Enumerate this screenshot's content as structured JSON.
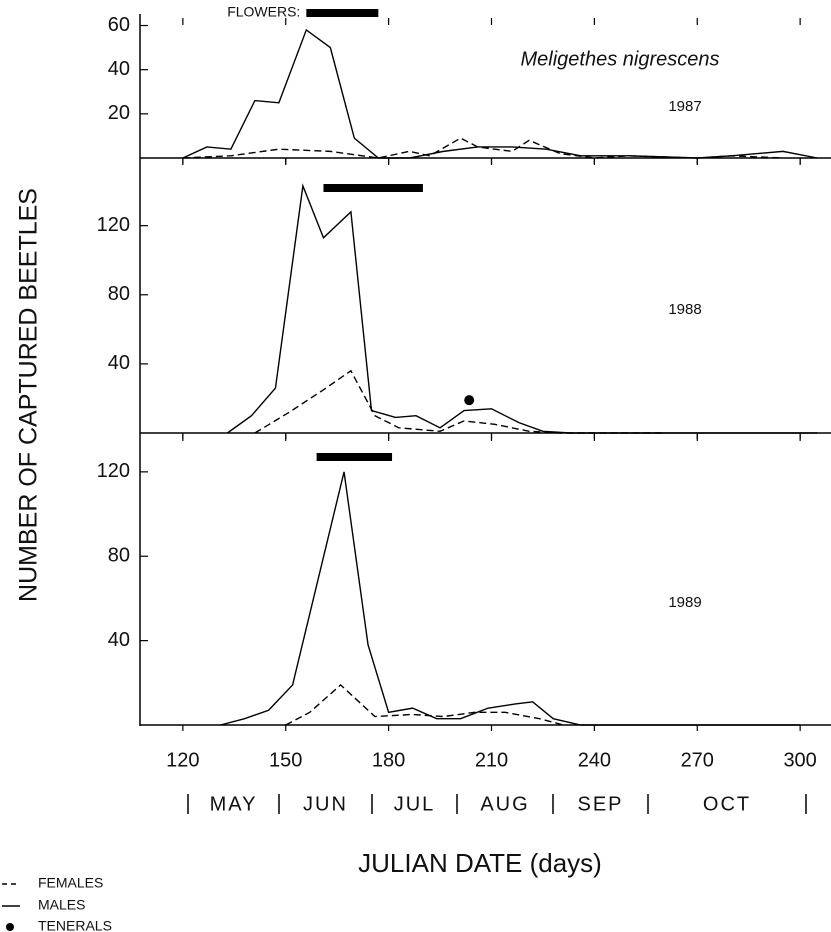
{
  "figure": {
    "ylabel": "NUMBER OF CAPTURED BEETLES",
    "xlabel": "JULIAN DATE (days)"
  },
  "chart_data": [
    {
      "type": "line",
      "label": "1987",
      "species": "Meligethes nigrescens",
      "flowers_label": "FLOWERS:",
      "flowers": [
        156,
        177
      ],
      "xlim": [
        107.5,
        309
      ],
      "ylim": [
        0,
        62.5
      ],
      "yticks": [
        20,
        40,
        60
      ],
      "series": [
        {
          "dash": true,
          "color": "#000000",
          "x": [
            120,
            134,
            148,
            163,
            177,
            186,
            192,
            201,
            206,
            216,
            221,
            230,
            240,
            250,
            270,
            280,
            295
          ],
          "values": [
            0,
            1,
            4,
            3,
            0,
            3,
            1,
            9,
            5,
            3,
            8,
            2,
            0,
            1,
            0,
            1,
            0
          ]
        },
        {
          "dash": false,
          "color": "#000000",
          "x": [
            120,
            127,
            134,
            141,
            148,
            156,
            163,
            170,
            177,
            186,
            196,
            206,
            216,
            226,
            236,
            250,
            270,
            280,
            295,
            305
          ],
          "values": [
            0,
            5,
            4,
            26,
            25,
            58,
            50,
            9,
            0,
            0,
            3,
            5,
            5,
            4,
            1,
            1,
            0,
            1,
            3,
            0
          ]
        }
      ]
    },
    {
      "type": "line",
      "label": "1988",
      "flowers": [
        161,
        190
      ],
      "xlim": [
        107.5,
        309
      ],
      "ylim": [
        0,
        158
      ],
      "yticks": [
        40,
        80,
        120
      ],
      "series": [
        {
          "name": "FEMALES",
          "dash": true,
          "color": "#000000",
          "x": [
            141,
            151,
            161,
            169,
            176,
            183,
            195,
            202,
            211,
            221,
            230,
            260
          ],
          "values": [
            0,
            12,
            25,
            36,
            10,
            3,
            1,
            7,
            5,
            1,
            0,
            0
          ]
        },
        {
          "name": "MALES",
          "dash": false,
          "color": "#000000",
          "x": [
            133,
            140,
            147,
            155,
            161,
            169,
            175,
            182,
            188,
            195,
            202,
            210,
            218,
            225,
            233,
            260,
            305
          ],
          "values": [
            0,
            10,
            26,
            143,
            113,
            128,
            13,
            9,
            10,
            3,
            13,
            14,
            6,
            1,
            0,
            0,
            0
          ]
        },
        {
          "name": "TENERALS",
          "marker": "dot",
          "color": "#000000",
          "x": [
            203.5
          ],
          "values": [
            19
          ]
        }
      ]
    },
    {
      "type": "line",
      "label": "1989",
      "flowers": [
        159,
        181
      ],
      "xlim": [
        107.5,
        309
      ],
      "ylim": [
        0,
        137
      ],
      "yticks": [
        40,
        80,
        120
      ],
      "xticks": [
        120,
        150,
        180,
        210,
        240,
        270,
        300
      ],
      "months": [
        "MAY",
        "JUN",
        "JUL",
        "AUG",
        "SEP",
        "OCT"
      ],
      "series": [
        {
          "dash": true,
          "color": "#000000",
          "x": [
            150,
            157,
            166,
            176,
            187,
            196,
            205,
            214,
            224,
            231
          ],
          "values": [
            0,
            6,
            19,
            4,
            5,
            4,
            6,
            6,
            3,
            0
          ]
        },
        {
          "dash": false,
          "color": "#000000",
          "x": [
            131,
            138,
            145,
            152,
            167,
            174,
            180,
            187,
            194,
            201,
            209,
            217,
            222,
            228,
            236,
            300
          ],
          "values": [
            0,
            3,
            7,
            19,
            120,
            38,
            6,
            8,
            3,
            3,
            8,
            10,
            11,
            3,
            0,
            0
          ]
        }
      ]
    }
  ]
}
